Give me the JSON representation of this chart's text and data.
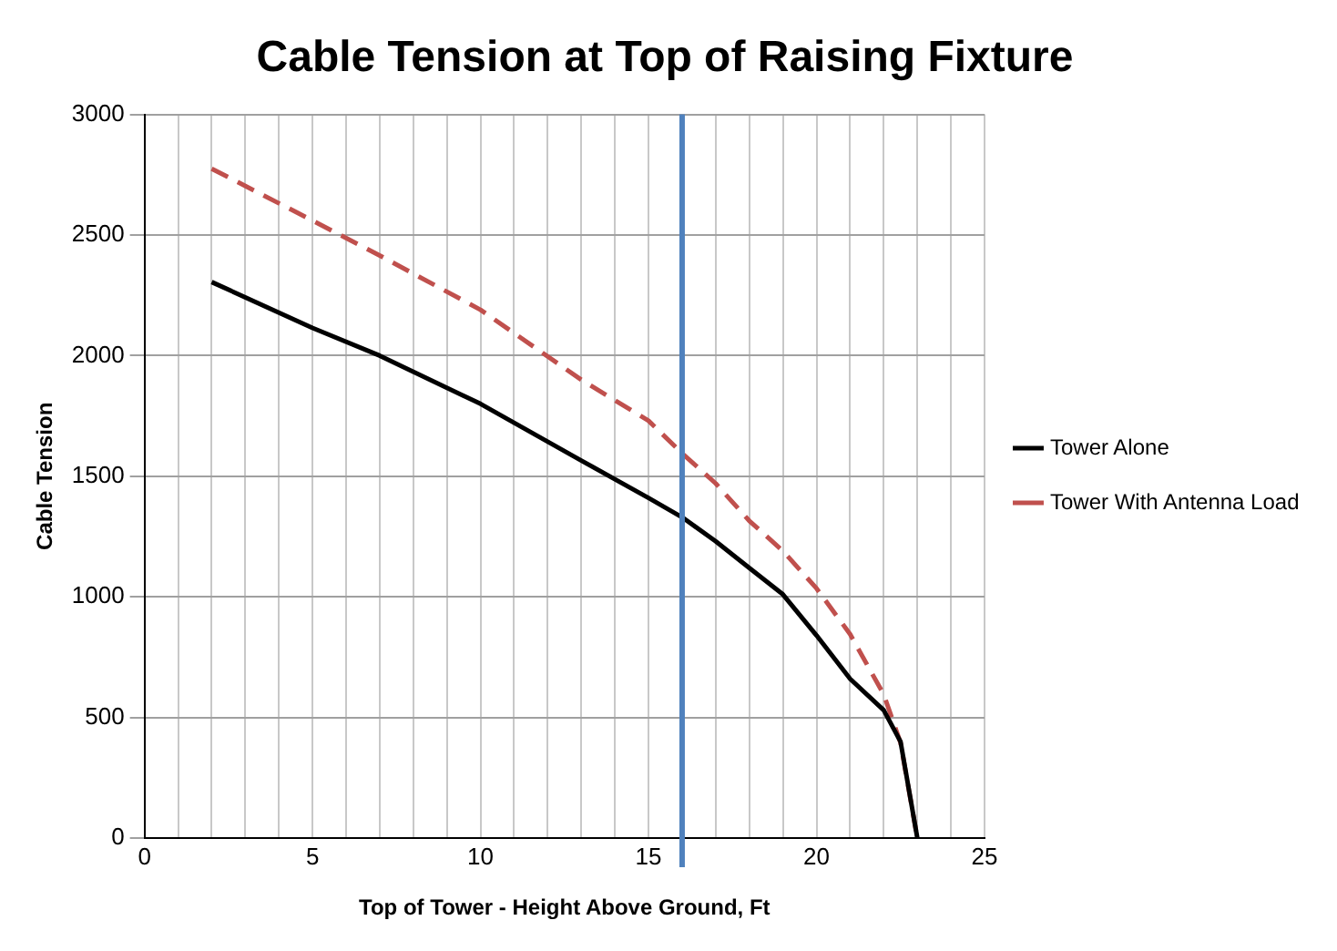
{
  "chart_data": {
    "type": "line",
    "title": "Cable Tension at Top of Raising Fixture",
    "xlabel": "Top of Tower - Height Above Ground, Ft",
    "ylabel": "Cable Tension",
    "x": [
      2,
      5,
      7,
      10,
      13,
      15,
      16,
      17,
      18,
      19,
      20,
      21,
      22,
      22.5,
      23
    ],
    "series": [
      {
        "name": "Tower Alone",
        "color": "#000000",
        "line_style": "solid",
        "values": [
          2305,
          2115,
          2000,
          1800,
          1565,
          1410,
          1330,
          1230,
          1120,
          1010,
          840,
          660,
          530,
          400,
          0
        ]
      },
      {
        "name": "Tower With Antenna Load",
        "color": "#c0504d",
        "line_style": "dashed",
        "values": [
          2775,
          2560,
          2415,
          2190,
          1900,
          1730,
          1595,
          1470,
          1315,
          1190,
          1035,
          845,
          595,
          395,
          0
        ]
      }
    ],
    "xlim": [
      0,
      25
    ],
    "xticks": [
      0,
      {
        "value": 1,
        "label": null
      },
      {
        "value": 2,
        "label": null
      },
      {
        "value": 3,
        "label": null
      },
      {
        "value": 4,
        "label": null
      },
      5,
      {
        "value": 6,
        "label": null
      },
      {
        "value": 7,
        "label": null
      },
      {
        "value": 8,
        "label": null
      },
      {
        "value": 9,
        "label": null
      },
      10,
      {
        "value": 11,
        "label": null
      },
      {
        "value": 12,
        "label": null
      },
      {
        "value": 13,
        "label": null
      },
      {
        "value": 14,
        "label": null
      },
      15,
      {
        "value": 16,
        "label": null
      },
      {
        "value": 17,
        "label": null
      },
      {
        "value": 18,
        "label": null
      },
      {
        "value": 19,
        "label": null
      },
      20,
      {
        "value": 21,
        "label": null
      },
      {
        "value": 22,
        "label": null
      },
      {
        "value": 23,
        "label": null
      },
      {
        "value": 24,
        "label": null
      },
      25
    ],
    "ylim": [
      0,
      3000
    ],
    "yticks": [
      0,
      500,
      1000,
      1500,
      2000,
      2500,
      3000
    ],
    "ref_lines": [
      {
        "axis": "x",
        "value": 16,
        "color": "#4f81bd"
      }
    ],
    "grid": true,
    "legend": "right",
    "marker": "none"
  }
}
